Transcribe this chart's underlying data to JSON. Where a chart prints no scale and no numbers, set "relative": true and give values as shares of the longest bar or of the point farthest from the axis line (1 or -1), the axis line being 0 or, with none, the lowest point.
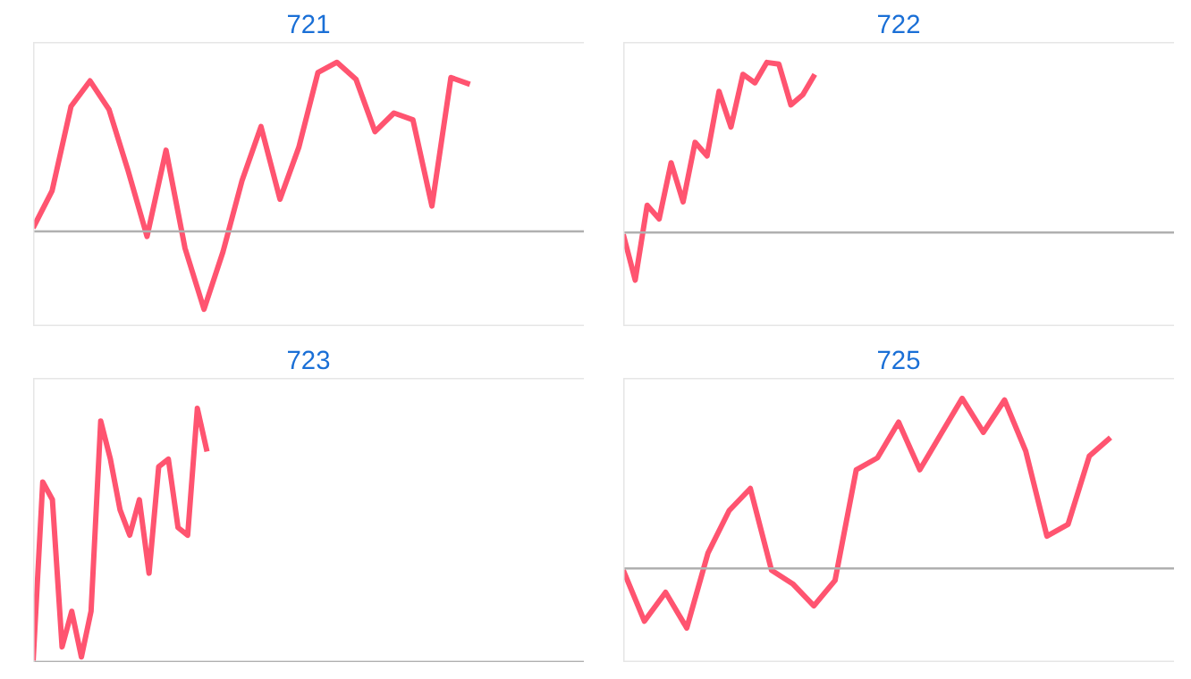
{
  "chart_data": [
    {
      "type": "line",
      "title": "721",
      "relative": true,
      "tick_labels": false,
      "categories": [
        null,
        null,
        null,
        null,
        null,
        null,
        null,
        null,
        null,
        null,
        null,
        null,
        null,
        null,
        null,
        null,
        null,
        null,
        null,
        null,
        null,
        null,
        null,
        null,
        null,
        null,
        null,
        null,
        null,
        null
      ],
      "series": [
        {
          "color": "#ff5470",
          "values": [
            0.02,
            0.24,
            0.74,
            0.89,
            0.72,
            0.36,
            -0.03,
            0.48,
            -0.1,
            -0.46,
            -0.12,
            0.3,
            0.62,
            0.19,
            0.5,
            0.94,
            1,
            0.9,
            0.59,
            0.7,
            0.66,
            0.15,
            0.91,
            0.87,
            null,
            null,
            null,
            null,
            null,
            null
          ]
        }
      ]
    },
    {
      "type": "line",
      "title": "722",
      "relative": true,
      "tick_labels": false,
      "categories": [
        null,
        null,
        null,
        null,
        null,
        null,
        null,
        null,
        null,
        null,
        null,
        null,
        null,
        null,
        null,
        null,
        null,
        null,
        null,
        null,
        null,
        null,
        null,
        null,
        null,
        null,
        null,
        null,
        null,
        null,
        null,
        null,
        null,
        null,
        null,
        null,
        null,
        null,
        null,
        null,
        null,
        null,
        null,
        null,
        null,
        null,
        null
      ],
      "series": [
        {
          "color": "#ff5470",
          "values": [
            -0.01,
            -0.28,
            0.16,
            0.08,
            0.41,
            0.18,
            0.53,
            0.45,
            0.83,
            0.62,
            0.93,
            0.88,
            1,
            0.99,
            0.75,
            0.81,
            0.93,
            null,
            null,
            null,
            null,
            null,
            null,
            null,
            null,
            null,
            null,
            null,
            null,
            null,
            null,
            null,
            null,
            null,
            null,
            null,
            null,
            null,
            null,
            null,
            null,
            null,
            null,
            null,
            null,
            null,
            null
          ]
        }
      ]
    },
    {
      "type": "line",
      "title": "723",
      "relative": true,
      "tick_labels": false,
      "categories": [
        null,
        null,
        null,
        null,
        null,
        null,
        null,
        null,
        null,
        null,
        null,
        null,
        null,
        null,
        null,
        null,
        null,
        null,
        null,
        null,
        null,
        null,
        null,
        null,
        null,
        null,
        null,
        null,
        null,
        null,
        null,
        null,
        null,
        null,
        null,
        null,
        null,
        null,
        null,
        null,
        null,
        null,
        null,
        null,
        null,
        null,
        null,
        null,
        null,
        null,
        null,
        null,
        null,
        null,
        null,
        null,
        null,
        null
      ],
      "series": [
        {
          "color": "#ff5470",
          "values": [
            0.0,
            0.71,
            0.64,
            0.06,
            0.2,
            0.02,
            0.2,
            0.95,
            0.8,
            0.6,
            0.5,
            0.64,
            0.35,
            0.77,
            0.8,
            0.53,
            0.5,
            1,
            0.83,
            null,
            null,
            null,
            null,
            null,
            null,
            null,
            null,
            null,
            null,
            null,
            null,
            null,
            null,
            null,
            null,
            null,
            null,
            null,
            null,
            null,
            null,
            null,
            null,
            null,
            null,
            null,
            null,
            null,
            null,
            null,
            null,
            null,
            null,
            null,
            null,
            null,
            null,
            null
          ]
        }
      ]
    },
    {
      "type": "line",
      "title": "725",
      "relative": true,
      "tick_labels": false,
      "categories": [
        null,
        null,
        null,
        null,
        null,
        null,
        null,
        null,
        null,
        null,
        null,
        null,
        null,
        null,
        null,
        null,
        null,
        null,
        null,
        null,
        null,
        null,
        null,
        null,
        null,
        null,
        null
      ],
      "series": [
        {
          "color": "#ff5470",
          "values": [
            -0.01,
            -0.31,
            -0.14,
            -0.35,
            0.09,
            0.34,
            0.47,
            -0.01,
            -0.09,
            -0.22,
            -0.07,
            0.58,
            0.65,
            0.86,
            0.58,
            0.79,
            1,
            0.8,
            0.99,
            0.69,
            0.19,
            0.26,
            0.66,
            0.77,
            null,
            null,
            null
          ]
        }
      ]
    }
  ]
}
